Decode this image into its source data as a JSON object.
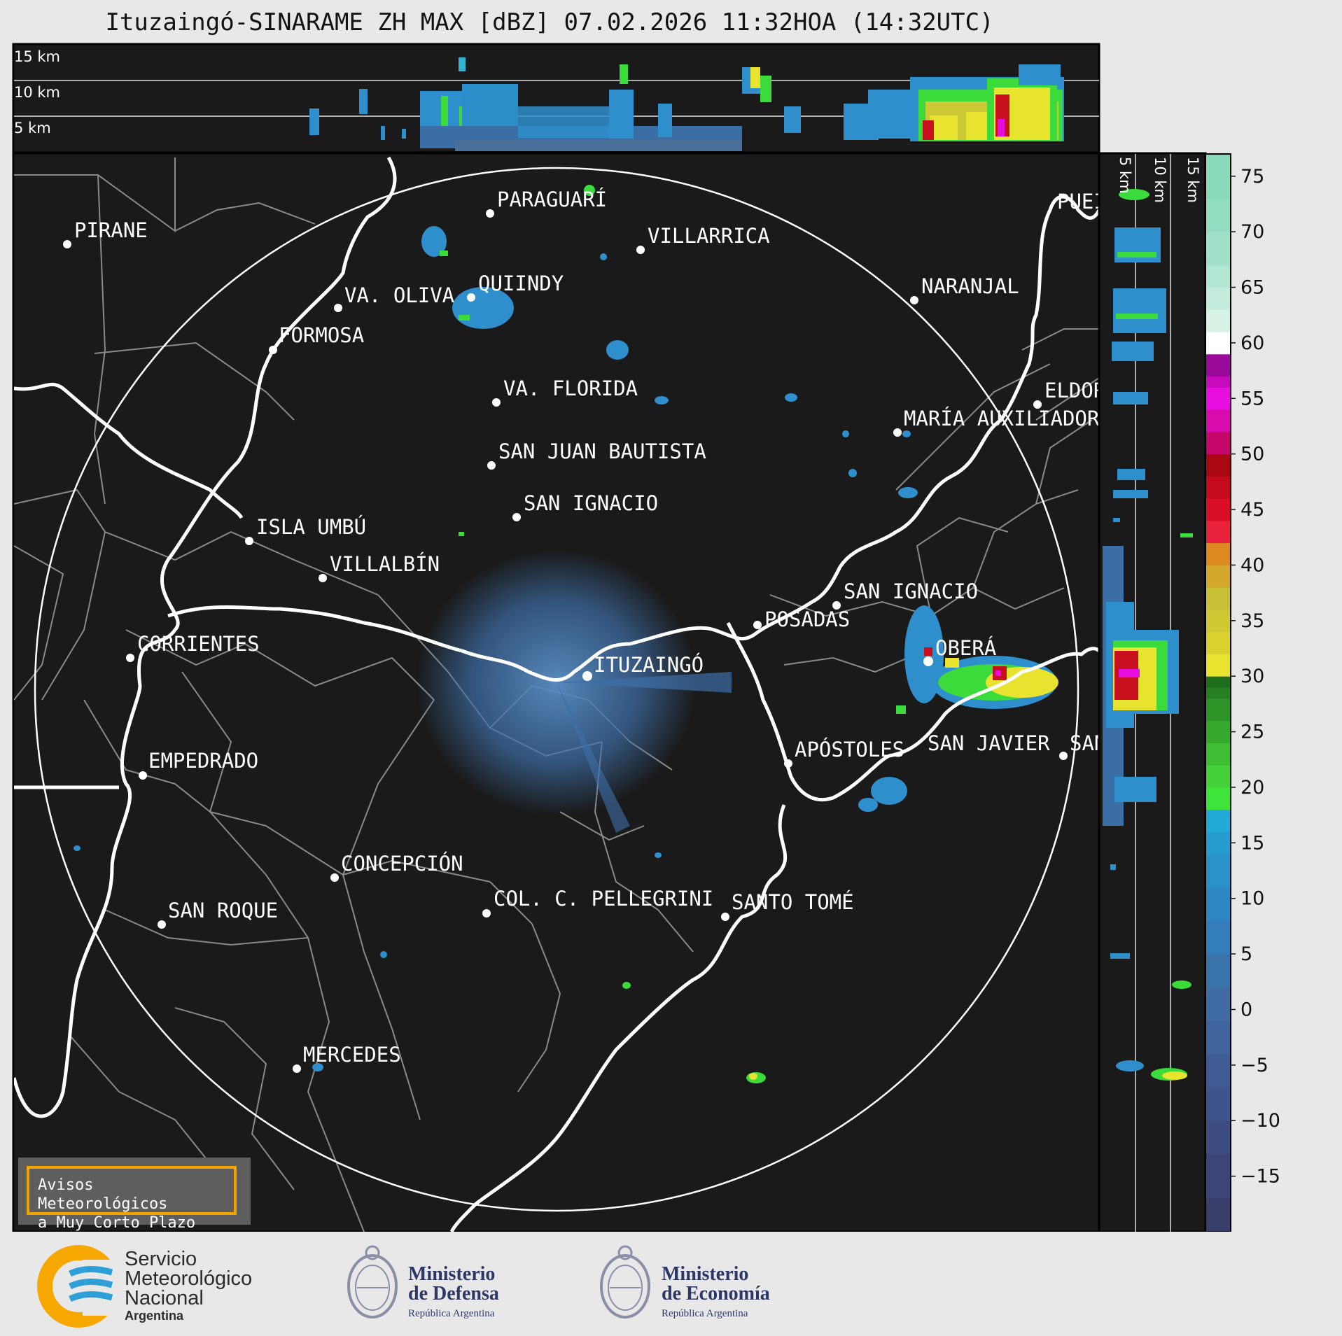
{
  "title": "Ituzaingó-SINARAME ZH MAX [dBZ] 07.02.2026 11:32HOA (14:32UTC)",
  "colors": {
    "map_background": "#1a1a1a",
    "range_ring": "#ffffff",
    "boundaries": "#8a8a8a",
    "rivers": "#ffffff",
    "avisos_border": "#f1a400"
  },
  "top_section": {
    "height_labels": [
      "15 km",
      "10 km",
      "5 km"
    ]
  },
  "side_section": {
    "height_labels": [
      "5 km",
      "10 km",
      "15 km"
    ]
  },
  "colorbar": {
    "unit": "dBZ",
    "ticks": [
      "75",
      "70",
      "65",
      "60",
      "55",
      "50",
      "45",
      "40",
      "35",
      "30",
      "25",
      "20",
      "15",
      "10",
      "5",
      "0",
      "−5",
      "−10",
      "−15"
    ],
    "min": -20,
    "max": 77
  },
  "cities": [
    {
      "name": "PIRANE"
    },
    {
      "name": "PARAGUARÍ"
    },
    {
      "name": "VILLARRICA"
    },
    {
      "name": "VA. OLIVA"
    },
    {
      "name": "QUIINDY"
    },
    {
      "name": "NARANJAL"
    },
    {
      "name": "FORMOSA"
    },
    {
      "name": "VA. FLORIDA"
    },
    {
      "name": "ELDOR"
    },
    {
      "name": "MARÍA AUXILIADOR"
    },
    {
      "name": "SAN JUAN BAUTISTA"
    },
    {
      "name": "SAN IGNACIO"
    },
    {
      "name": "ISLA UMBÚ"
    },
    {
      "name": "VILLALBÍN"
    },
    {
      "name": "SAN IGNACIO"
    },
    {
      "name": "POSADAS"
    },
    {
      "name": "CORRIENTES"
    },
    {
      "name": "ITUZAINGÓ"
    },
    {
      "name": "OBERÁ"
    },
    {
      "name": "EMPEDRADO"
    },
    {
      "name": "APÓSTOLES"
    },
    {
      "name": "SAN JAVIER"
    },
    {
      "name": "SAN"
    },
    {
      "name": "CONCEPCIÓN"
    },
    {
      "name": "COL. C. PELLEGRINI"
    },
    {
      "name": "SANTO TOMÉ"
    },
    {
      "name": "SAN ROQUE"
    },
    {
      "name": "MERCEDES"
    },
    {
      "name": "PUEI"
    }
  ],
  "avisos": {
    "line1": "Avisos Meteorológicos",
    "line2": "a Muy Corto Plazo"
  },
  "footer": {
    "smn": {
      "line1": "Servicio",
      "line2": "Meteorológico",
      "line3": "Nacional",
      "line4": "Argentina"
    },
    "defensa": {
      "line1": "Ministerio",
      "line2": "de Defensa",
      "line3": "República Argentina"
    },
    "economia": {
      "line1": "Ministerio",
      "line2": "de Economía",
      "line3": "República Argentina"
    }
  }
}
